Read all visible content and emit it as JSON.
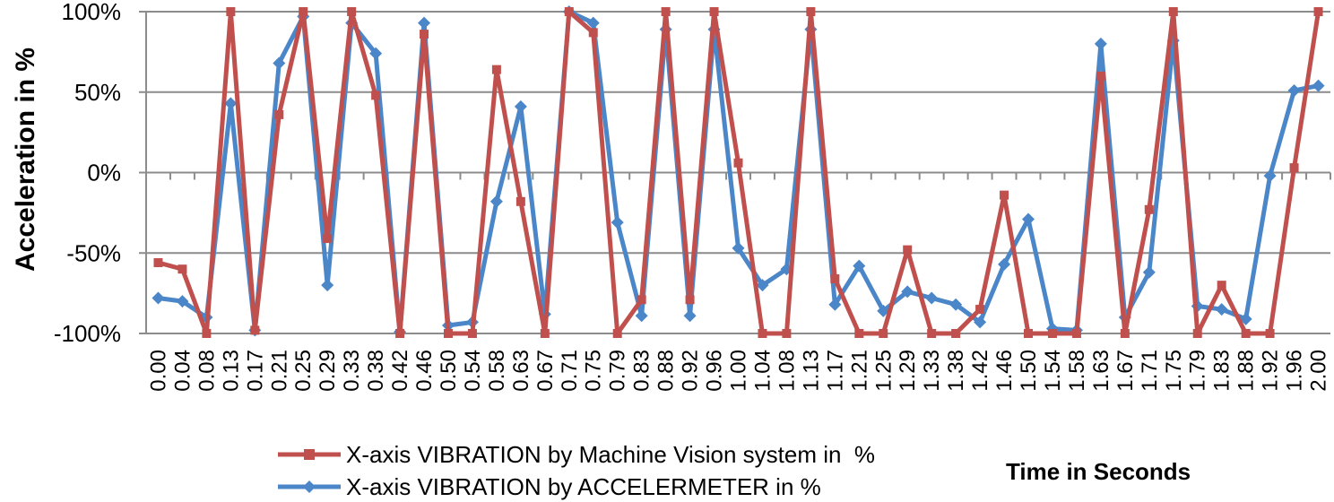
{
  "chart_data": {
    "type": "line",
    "title": "",
    "xlabel": "Time in Seconds",
    "ylabel": "Acceleration in %",
    "ylim": [
      -100,
      100
    ],
    "yticks": [
      {
        "value": 100,
        "label": "100%"
      },
      {
        "value": 50,
        "label": "50%"
      },
      {
        "value": 0,
        "label": "0%"
      },
      {
        "value": -50,
        "label": "-50%"
      },
      {
        "value": -100,
        "label": "-100%"
      }
    ],
    "grid": true,
    "legend_position": "bottom",
    "categories": [
      "0.00",
      "0.04",
      "0.08",
      "0.13",
      "0.17",
      "0.21",
      "0.25",
      "0.29",
      "0.33",
      "0.38",
      "0.42",
      "0.46",
      "0.50",
      "0.54",
      "0.58",
      "0.63",
      "0.67",
      "0.71",
      "0.75",
      "0.79",
      "0.83",
      "0.88",
      "0.92",
      "0.96",
      "1.00",
      "1.04",
      "1.08",
      "1.13",
      "1.17",
      "1.21",
      "1.25",
      "1.29",
      "1.33",
      "1.38",
      "1.42",
      "1.46",
      "1.50",
      "1.54",
      "1.58",
      "1.63",
      "1.67",
      "1.71",
      "1.75",
      "1.79",
      "1.83",
      "1.88",
      "1.92",
      "1.96",
      "2.00"
    ],
    "series": [
      {
        "name": "X-axis VIBRATION by Machine Vision system in  %",
        "color": "#c0504d",
        "marker": "square",
        "values": [
          -56,
          -60,
          -100,
          100,
          -98,
          36,
          100,
          -41,
          100,
          48,
          -100,
          86,
          -100,
          -100,
          64,
          -18,
          -100,
          100,
          87,
          -100,
          -79,
          100,
          -79,
          100,
          6,
          -100,
          -100,
          100,
          -66,
          -100,
          -100,
          -48,
          -100,
          -100,
          -85,
          -14,
          -100,
          -100,
          -100,
          60,
          -100,
          -23,
          100,
          -100,
          -70,
          -100,
          -100,
          3,
          100
        ]
      },
      {
        "name": "X-axis VIBRATION by ACCELERMETER in %",
        "color": "#4a86c8",
        "marker": "diamond",
        "values": [
          -78,
          -80,
          -90,
          43,
          -98,
          68,
          97,
          -70,
          93,
          74,
          -99,
          93,
          -95,
          -93,
          -18,
          41,
          -88,
          100,
          93,
          -31,
          -89,
          89,
          -89,
          89,
          -47,
          -70,
          -60,
          89,
          -82,
          -58,
          -86,
          -74,
          -78,
          -82,
          -93,
          -57,
          -29,
          -97,
          -98,
          80,
          -90,
          -62,
          82,
          -83,
          -85,
          -91,
          -2,
          51,
          54
        ]
      }
    ]
  },
  "colors": {
    "grid": "#8c8c8c",
    "axis": "#8c8c8c"
  }
}
